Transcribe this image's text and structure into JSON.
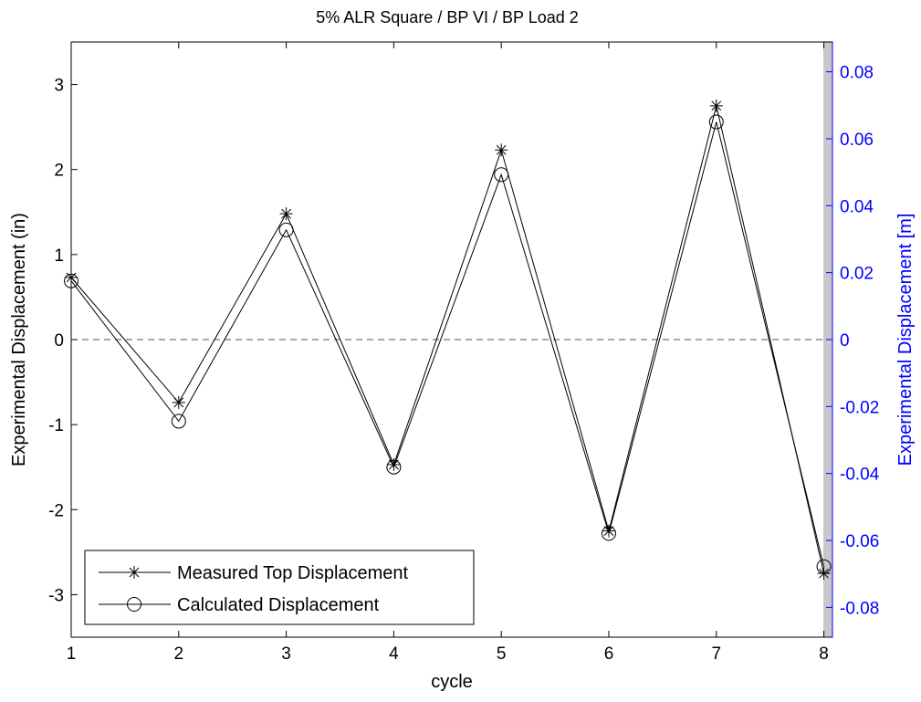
{
  "chart_data": {
    "type": "line",
    "title": "5% ALR Square / BP VI / BP Load 2",
    "xlabel": "cycle",
    "ylabel_left": "Experimental Displacement (in)",
    "ylabel_right": "Experimental Displacement [m]",
    "x": [
      1,
      2,
      3,
      4,
      5,
      6,
      7,
      8
    ],
    "xlim": [
      1,
      8.08
    ],
    "ylim_left": [
      -3.5,
      3.5
    ],
    "ylim_right": [
      -0.0889,
      0.0889
    ],
    "xticks": [
      "1",
      "2",
      "3",
      "4",
      "5",
      "6",
      "7",
      "8"
    ],
    "yticks_left": [
      "-3",
      "-2",
      "-1",
      "0",
      "1",
      "2",
      "3"
    ],
    "yticks_right": [
      "-0.08",
      "-0.06",
      "-0.04",
      "-0.02",
      "0",
      "0.02",
      "0.04",
      "0.06",
      "0.08"
    ],
    "zero_line": "dashed",
    "grid": false,
    "legend_position": "bottom-left",
    "series": [
      {
        "name": "Measured Top Displacement",
        "marker": "asterisk",
        "values": [
          0.73,
          -0.74,
          1.48,
          -1.47,
          2.23,
          -2.25,
          2.75,
          -2.75
        ]
      },
      {
        "name": "Calculated Displacement",
        "marker": "circle",
        "values": [
          0.69,
          -0.96,
          1.29,
          -1.5,
          1.94,
          -2.28,
          2.56,
          -2.67
        ]
      }
    ],
    "colors": {
      "line": "#000000",
      "right_axis": "#0000ff",
      "dashed_zero": "#555555",
      "side_band": "#c8c8c8"
    }
  }
}
